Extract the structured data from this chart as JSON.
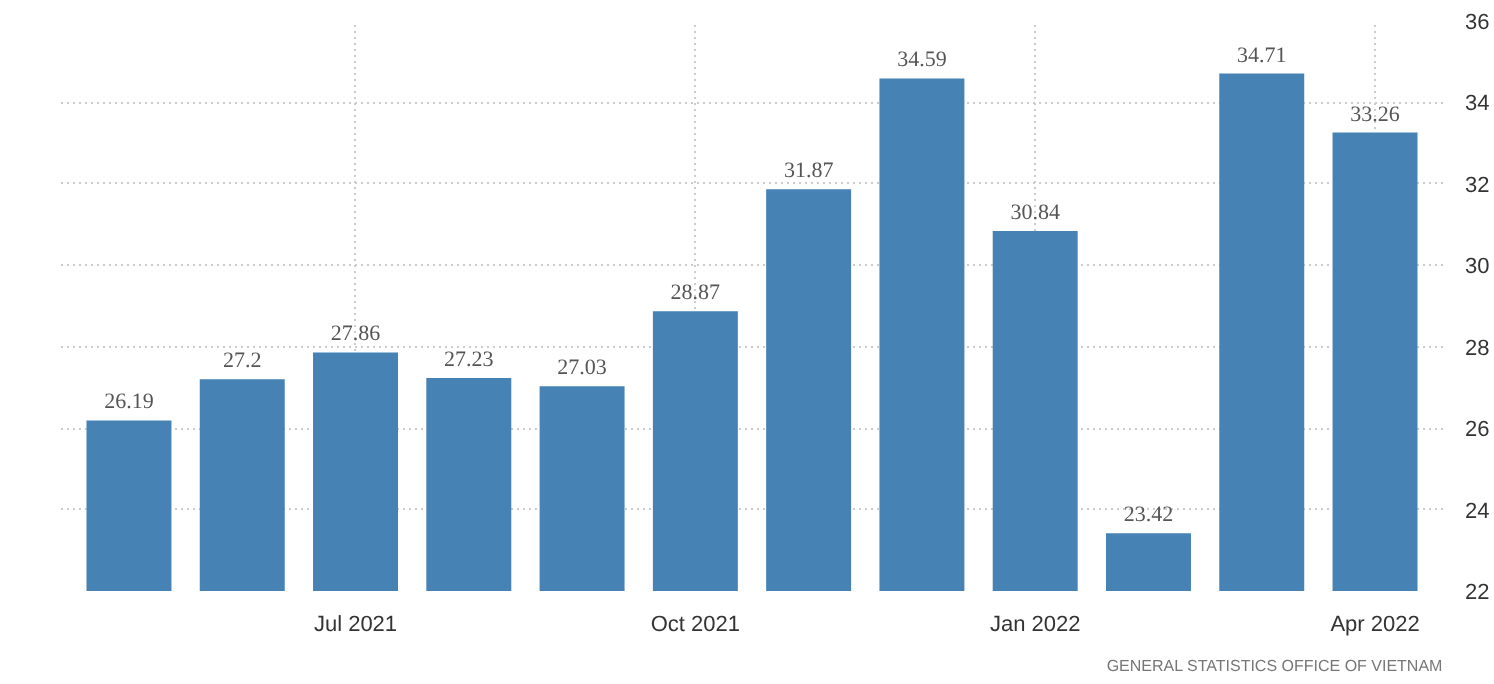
{
  "chart_data": {
    "type": "bar",
    "categories": [
      null,
      null,
      "Jul 2021",
      null,
      null,
      "Oct 2021",
      null,
      null,
      "Jan 2022",
      null,
      null,
      "Apr 2022"
    ],
    "values": [
      26.19,
      27.2,
      27.86,
      27.23,
      27.03,
      28.87,
      31.87,
      34.59,
      30.84,
      23.42,
      34.71,
      33.26
    ],
    "color": "#4682b4",
    "ylim": [
      22,
      36
    ],
    "yticks": [
      22,
      24,
      26,
      28,
      30,
      32,
      34,
      36
    ],
    "grid": true,
    "data_labels": true,
    "annotations": [
      "GENERAL STATISTICS OFFICE OF VIETNAM"
    ]
  }
}
